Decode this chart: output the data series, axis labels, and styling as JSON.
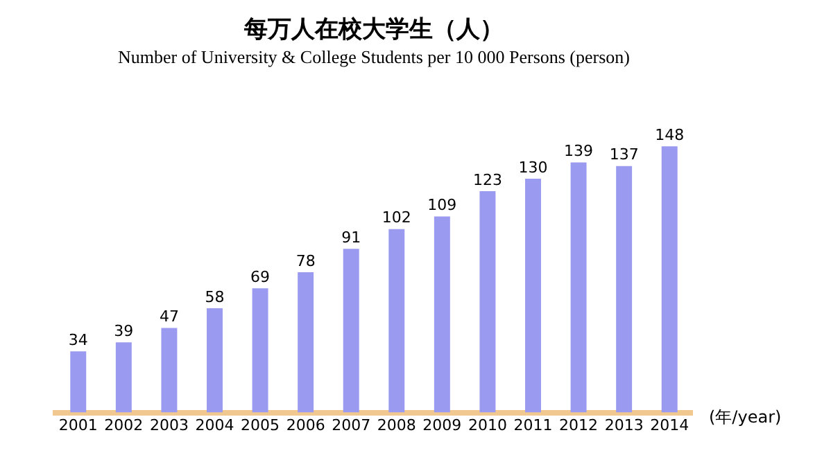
{
  "chart_data": {
    "type": "bar",
    "title": "每万人在校大学生（人）",
    "subtitle": "Number of University & College Students per 10 000 Persons (person)",
    "xlabel": "(年/year)",
    "categories": [
      "2001",
      "2002",
      "2003",
      "2004",
      "2005",
      "2006",
      "2007",
      "2008",
      "2009",
      "2010",
      "2011",
      "2012",
      "2013",
      "2014"
    ],
    "values": [
      34,
      39,
      47,
      58,
      69,
      78,
      91,
      102,
      109,
      123,
      130,
      139,
      137,
      148
    ],
    "color": "#9a9af0",
    "data_labels": true,
    "tick_labels": "x",
    "grid": false,
    "legend": false
  }
}
